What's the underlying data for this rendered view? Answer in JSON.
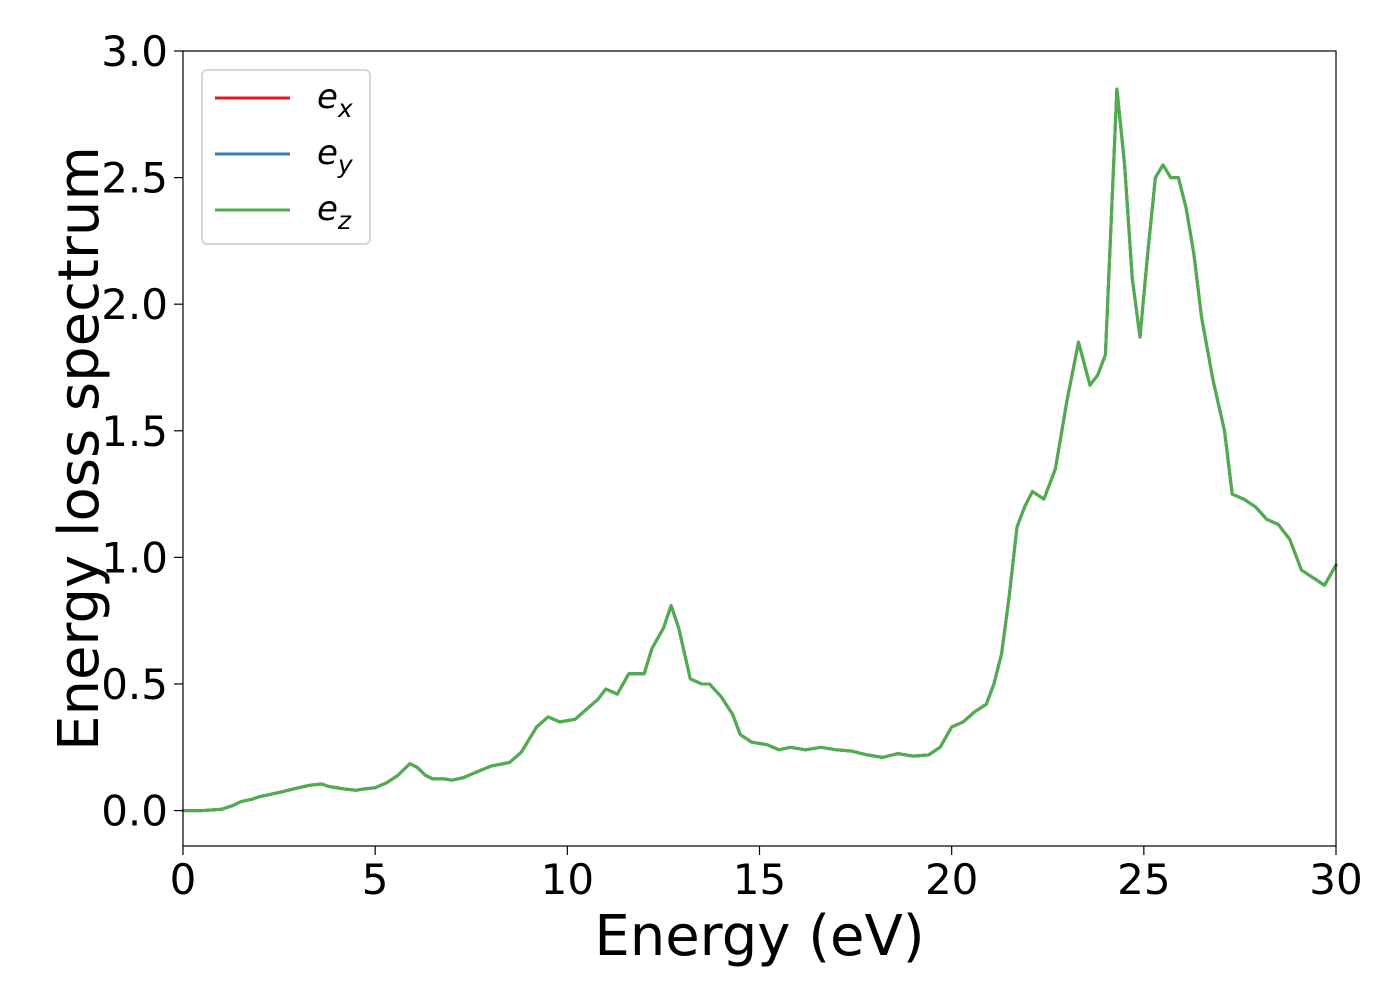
{
  "chart_data": {
    "type": "line",
    "title": "",
    "xlabel": "Energy (eV)",
    "ylabel": "Energy loss spectrum",
    "xlim": [
      0,
      30
    ],
    "ylim": [
      -0.14,
      3.0
    ],
    "xticks": [
      0,
      5,
      10,
      15,
      20,
      25,
      30
    ],
    "xtick_labels": [
      "0",
      "5",
      "10",
      "15",
      "20",
      "25",
      "30"
    ],
    "yticks": [
      0.0,
      0.5,
      1.0,
      1.5,
      2.0,
      2.5,
      3.0
    ],
    "ytick_labels": [
      "0.0",
      "0.5",
      "1.0",
      "1.5",
      "2.0",
      "2.5",
      "3.0"
    ],
    "grid": false,
    "legend_position": "top-left",
    "x": [
      0,
      0.5,
      1.0,
      1.3,
      1.5,
      1.8,
      2.0,
      2.3,
      2.6,
      3.0,
      3.3,
      3.6,
      3.8,
      4.2,
      4.5,
      4.7,
      5.0,
      5.3,
      5.6,
      5.9,
      6.1,
      6.3,
      6.5,
      6.8,
      7.0,
      7.3,
      7.6,
      8.0,
      8.5,
      8.8,
      9.0,
      9.2,
      9.5,
      9.8,
      10.2,
      10.5,
      10.8,
      11.0,
      11.3,
      11.6,
      12.0,
      12.2,
      12.5,
      12.7,
      12.9,
      13.2,
      13.5,
      13.7,
      14.0,
      14.3,
      14.5,
      14.8,
      15.2,
      15.5,
      15.8,
      16.2,
      16.6,
      17.0,
      17.4,
      17.8,
      18.2,
      18.6,
      19.0,
      19.4,
      19.7,
      20.0,
      20.3,
      20.6,
      20.9,
      21.1,
      21.3,
      21.5,
      21.7,
      21.9,
      22.1,
      22.4,
      22.7,
      23.0,
      23.3,
      23.6,
      23.8,
      24.0,
      24.3,
      24.5,
      24.7,
      24.9,
      25.1,
      25.3,
      25.5,
      25.7,
      25.9,
      26.1,
      26.3,
      26.5,
      26.8,
      27.1,
      27.3,
      27.6,
      27.9,
      28.2,
      28.5,
      28.8,
      29.1,
      29.4,
      29.7,
      30.0
    ],
    "series": [
      {
        "name": "e_x",
        "color": "#e41a1c",
        "values": [
          0.0,
          0.0,
          0.005,
          0.02,
          0.035,
          0.045,
          0.055,
          0.065,
          0.075,
          0.09,
          0.1,
          0.105,
          0.095,
          0.085,
          0.08,
          0.085,
          0.09,
          0.11,
          0.14,
          0.185,
          0.17,
          0.14,
          0.125,
          0.125,
          0.12,
          0.13,
          0.15,
          0.175,
          0.19,
          0.23,
          0.28,
          0.33,
          0.37,
          0.35,
          0.36,
          0.4,
          0.44,
          0.48,
          0.46,
          0.54,
          0.54,
          0.64,
          0.72,
          0.81,
          0.72,
          0.52,
          0.5,
          0.5,
          0.45,
          0.38,
          0.3,
          0.27,
          0.26,
          0.24,
          0.25,
          0.24,
          0.25,
          0.24,
          0.235,
          0.22,
          0.21,
          0.225,
          0.215,
          0.22,
          0.25,
          0.33,
          0.35,
          0.39,
          0.42,
          0.5,
          0.62,
          0.85,
          1.12,
          1.2,
          1.26,
          1.23,
          1.35,
          1.62,
          1.85,
          1.68,
          1.72,
          1.8,
          2.85,
          2.55,
          2.1,
          1.87,
          2.2,
          2.5,
          2.55,
          2.5,
          2.5,
          2.38,
          2.2,
          1.95,
          1.7,
          1.5,
          1.25,
          1.23,
          1.2,
          1.15,
          1.13,
          1.07,
          0.95,
          0.92,
          0.89,
          0.97
        ]
      },
      {
        "name": "e_y",
        "color": "#377eb8",
        "values": [
          0.0,
          0.0,
          0.005,
          0.02,
          0.035,
          0.045,
          0.055,
          0.065,
          0.075,
          0.09,
          0.1,
          0.105,
          0.095,
          0.085,
          0.08,
          0.085,
          0.09,
          0.11,
          0.14,
          0.185,
          0.17,
          0.14,
          0.125,
          0.125,
          0.12,
          0.13,
          0.15,
          0.175,
          0.19,
          0.23,
          0.28,
          0.33,
          0.37,
          0.35,
          0.36,
          0.4,
          0.44,
          0.48,
          0.46,
          0.54,
          0.54,
          0.64,
          0.72,
          0.81,
          0.72,
          0.52,
          0.5,
          0.5,
          0.45,
          0.38,
          0.3,
          0.27,
          0.26,
          0.24,
          0.25,
          0.24,
          0.25,
          0.24,
          0.235,
          0.22,
          0.21,
          0.225,
          0.215,
          0.22,
          0.25,
          0.33,
          0.35,
          0.39,
          0.42,
          0.5,
          0.62,
          0.85,
          1.12,
          1.2,
          1.26,
          1.23,
          1.35,
          1.62,
          1.85,
          1.68,
          1.72,
          1.8,
          2.85,
          2.55,
          2.1,
          1.87,
          2.2,
          2.5,
          2.55,
          2.5,
          2.5,
          2.38,
          2.2,
          1.95,
          1.7,
          1.5,
          1.25,
          1.23,
          1.2,
          1.15,
          1.13,
          1.07,
          0.95,
          0.92,
          0.89,
          0.97
        ]
      },
      {
        "name": "e_z",
        "color": "#4daf4a",
        "values": [
          0.0,
          0.0,
          0.005,
          0.02,
          0.035,
          0.045,
          0.055,
          0.065,
          0.075,
          0.09,
          0.1,
          0.105,
          0.095,
          0.085,
          0.08,
          0.085,
          0.09,
          0.11,
          0.14,
          0.185,
          0.17,
          0.14,
          0.125,
          0.125,
          0.12,
          0.13,
          0.15,
          0.175,
          0.19,
          0.23,
          0.28,
          0.33,
          0.37,
          0.35,
          0.36,
          0.4,
          0.44,
          0.48,
          0.46,
          0.54,
          0.54,
          0.64,
          0.72,
          0.81,
          0.72,
          0.52,
          0.5,
          0.5,
          0.45,
          0.38,
          0.3,
          0.27,
          0.26,
          0.24,
          0.25,
          0.24,
          0.25,
          0.24,
          0.235,
          0.22,
          0.21,
          0.225,
          0.215,
          0.22,
          0.25,
          0.33,
          0.35,
          0.39,
          0.42,
          0.5,
          0.62,
          0.85,
          1.12,
          1.2,
          1.26,
          1.23,
          1.35,
          1.62,
          1.85,
          1.68,
          1.72,
          1.8,
          2.85,
          2.55,
          2.1,
          1.87,
          2.2,
          2.5,
          2.55,
          2.5,
          2.5,
          2.38,
          2.2,
          1.95,
          1.7,
          1.5,
          1.25,
          1.23,
          1.2,
          1.15,
          1.13,
          1.07,
          0.95,
          0.92,
          0.89,
          0.97
        ]
      }
    ],
    "legend": [
      {
        "base": "e",
        "sub": "x",
        "color": "#e41a1c"
      },
      {
        "base": "e",
        "sub": "y",
        "color": "#377eb8"
      },
      {
        "base": "e",
        "sub": "z",
        "color": "#4daf4a"
      }
    ]
  }
}
